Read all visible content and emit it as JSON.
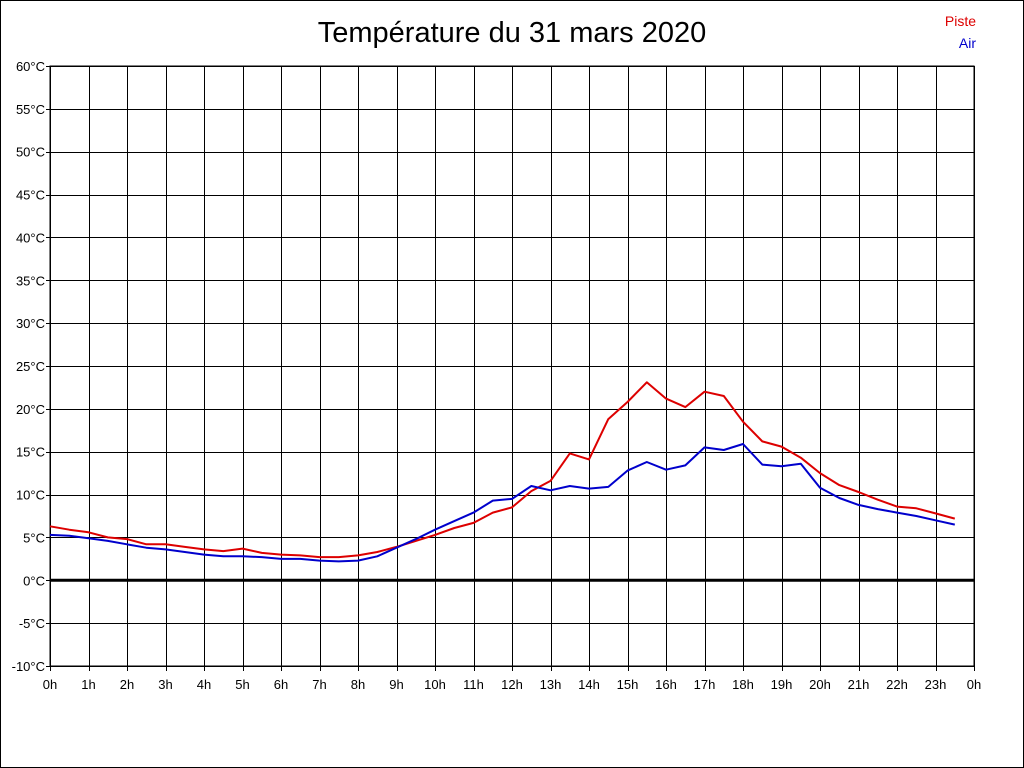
{
  "chart_data": {
    "type": "line",
    "title": "Température du 31 mars 2020",
    "xlabel": "",
    "ylabel": "",
    "ylim": [
      -10,
      60
    ],
    "y_ticks": [
      -10,
      -5,
      0,
      5,
      10,
      15,
      20,
      25,
      30,
      35,
      40,
      45,
      50,
      55,
      60
    ],
    "y_tick_labels": [
      "-10°C",
      "-5°C",
      "0°C",
      "5°C",
      "10°C",
      "15°C",
      "20°C",
      "25°C",
      "30°C",
      "35°C",
      "40°C",
      "45°C",
      "50°C",
      "55°C",
      "60°C"
    ],
    "xlim": [
      0,
      24
    ],
    "x_ticks": [
      0,
      1,
      2,
      3,
      4,
      5,
      6,
      7,
      8,
      9,
      10,
      11,
      12,
      13,
      14,
      15,
      16,
      17,
      18,
      19,
      20,
      21,
      22,
      23,
      24
    ],
    "x_tick_labels": [
      "0h",
      "1h",
      "2h",
      "3h",
      "4h",
      "5h",
      "6h",
      "7h",
      "8h",
      "9h",
      "10h",
      "11h",
      "12h",
      "13h",
      "14h",
      "15h",
      "16h",
      "17h",
      "18h",
      "19h",
      "20h",
      "21h",
      "22h",
      "23h",
      "0h"
    ],
    "grid": true,
    "zero_line": true,
    "legend_position": "top-right",
    "series": [
      {
        "name": "Piste",
        "color": "#dd0000",
        "x": [
          0,
          0.5,
          1,
          1.5,
          2,
          2.5,
          3,
          3.5,
          4,
          4.5,
          5,
          5.5,
          6,
          6.5,
          7,
          7.5,
          8,
          8.5,
          9,
          9.5,
          10,
          10.5,
          11,
          11.5,
          12,
          12.5,
          13,
          13.5,
          14,
          14.5,
          15,
          15.5,
          16,
          16.5,
          17,
          17.5,
          18,
          18.5,
          19,
          19.5,
          20,
          20.5,
          21,
          21.5,
          22,
          22.5,
          23,
          23.5
        ],
        "values": [
          6.3,
          5.9,
          5.6,
          5.0,
          4.8,
          4.2,
          4.2,
          3.9,
          3.6,
          3.4,
          3.7,
          3.2,
          3.0,
          2.9,
          2.7,
          2.7,
          2.9,
          3.3,
          3.9,
          4.6,
          5.3,
          6.1,
          6.7,
          7.9,
          8.5,
          10.4,
          11.6,
          14.8,
          14.1,
          18.8,
          20.8,
          23.1,
          21.2,
          20.2,
          22.0,
          21.5,
          18.5,
          16.2,
          15.6,
          14.3,
          12.5,
          11.1,
          10.3,
          9.4,
          8.6,
          8.4,
          7.8,
          7.2
        ]
      },
      {
        "name": "Air",
        "color": "#0000cc",
        "x": [
          0,
          0.5,
          1,
          1.5,
          2,
          2.5,
          3,
          3.5,
          4,
          4.5,
          5,
          5.5,
          6,
          6.5,
          7,
          7.5,
          8,
          8.5,
          9,
          9.5,
          10,
          10.5,
          11,
          11.5,
          12,
          12.5,
          13,
          13.5,
          14,
          14.5,
          15,
          15.5,
          16,
          16.5,
          17,
          17.5,
          18,
          18.5,
          19,
          19.5,
          20,
          20.5,
          21,
          21.5,
          22,
          22.5,
          23,
          23.5
        ],
        "values": [
          5.3,
          5.2,
          4.9,
          4.6,
          4.2,
          3.8,
          3.6,
          3.3,
          3.0,
          2.8,
          2.8,
          2.7,
          2.5,
          2.5,
          2.3,
          2.2,
          2.3,
          2.8,
          3.8,
          4.8,
          5.9,
          6.9,
          7.9,
          9.3,
          9.5,
          11.0,
          10.5,
          11.0,
          10.7,
          10.9,
          12.8,
          13.8,
          12.9,
          13.4,
          15.5,
          15.2,
          15.9,
          13.5,
          13.3,
          13.6,
          10.8,
          9.6,
          8.8,
          8.3,
          7.9,
          7.5,
          7.0,
          6.5
        ]
      }
    ]
  }
}
